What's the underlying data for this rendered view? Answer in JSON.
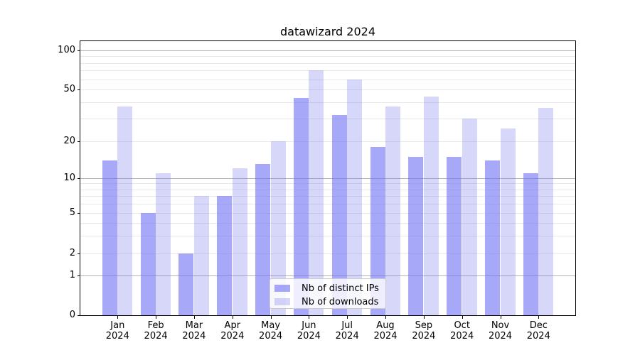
{
  "chart_data": {
    "type": "bar",
    "title": "datawizard 2024",
    "categories": [
      "Jan",
      "Feb",
      "Mar",
      "Apr",
      "May",
      "Jun",
      "Jul",
      "Aug",
      "Sep",
      "Oct",
      "Nov",
      "Dec"
    ],
    "category_year": "2024",
    "series": [
      {
        "name": "Nb of distinct IPs",
        "color": "#a8a8fa",
        "color_rgba": "rgba(110,110,245,0.60)",
        "values": [
          14,
          5,
          2,
          7,
          13,
          43,
          32,
          18,
          15,
          15,
          14,
          11
        ]
      },
      {
        "name": "Nb of downloads",
        "color": "#d8d8f8",
        "color_rgba": "rgba(110,110,235,0.28)",
        "values": [
          37,
          11,
          7,
          12,
          20,
          70,
          60,
          37,
          44,
          30,
          25,
          36
        ]
      }
    ],
    "yaxis": {
      "scale": "log-like (asinh)",
      "tick_labels": [
        "0",
        "1",
        "2",
        "5",
        "10",
        "20",
        "50",
        "100"
      ],
      "tick_values": [
        0,
        1,
        2,
        5,
        10,
        20,
        50,
        100
      ],
      "ylim": [
        0,
        116
      ]
    },
    "grid": {
      "horizontal": true,
      "major_values": [
        1,
        10,
        100
      ],
      "minor_values": [
        2,
        3,
        4,
        5,
        6,
        7,
        8,
        9,
        20,
        30,
        40,
        50,
        60,
        70,
        80,
        90
      ]
    },
    "legend": {
      "position": "lower center",
      "entries": [
        "Nb of distinct IPs",
        "Nb of downloads"
      ]
    }
  }
}
